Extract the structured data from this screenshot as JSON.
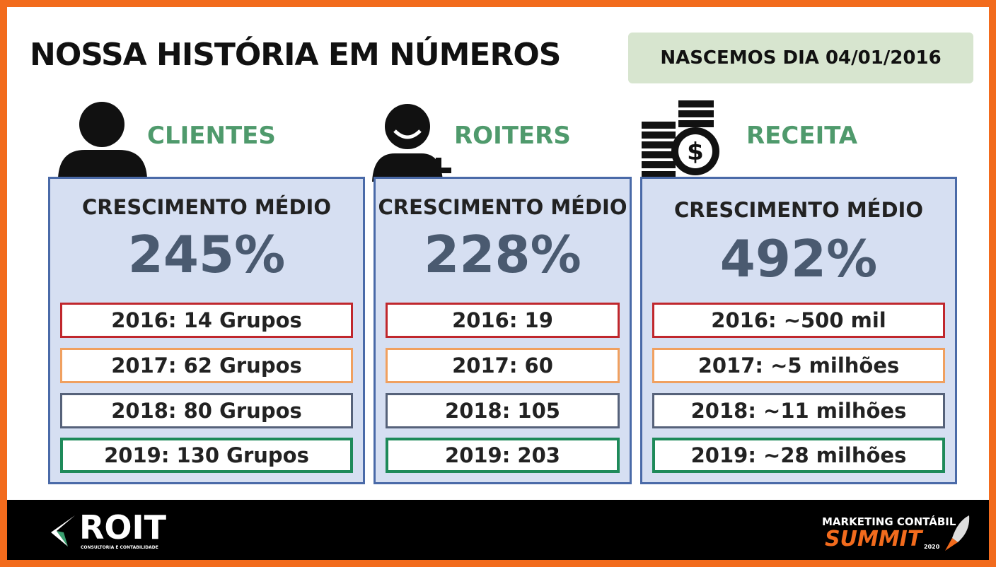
{
  "header": {
    "title": "NOSSA HISTÓRIA EM NÚMEROS",
    "badge": "NASCEMOS DIA 04/01/2016"
  },
  "columns": [
    {
      "label": "CLIENTES",
      "subtitle": "CRESCIMENTO MÉDIO",
      "value": "245%",
      "rows": [
        "2016: 14 Grupos",
        "2017: 62 Grupos",
        "2018: 80 Grupos",
        "2019: 130 Grupos"
      ]
    },
    {
      "label": "ROITERS",
      "subtitle": "CRESCIMENTO MÉDIO",
      "value": "228%",
      "rows": [
        "2016: 19",
        "2017: 60",
        "2018: 105",
        "2019: 203"
      ]
    },
    {
      "label": "RECEITA",
      "subtitle": "CRESCIMENTO MÉDIO",
      "value": "492%",
      "rows": [
        "2016: ~500 mil",
        "2017: ~5 milhões",
        "2018: ~11 milhões",
        "2019: ~28 milhões"
      ]
    }
  ],
  "footer": {
    "logo": "ROIT",
    "logo_sub": "CONSULTORIA E CONTABILIDADE",
    "event_top": "MARKETING CONTÁBIL",
    "event_main": "SUMMIT",
    "event_year": "2020"
  }
}
